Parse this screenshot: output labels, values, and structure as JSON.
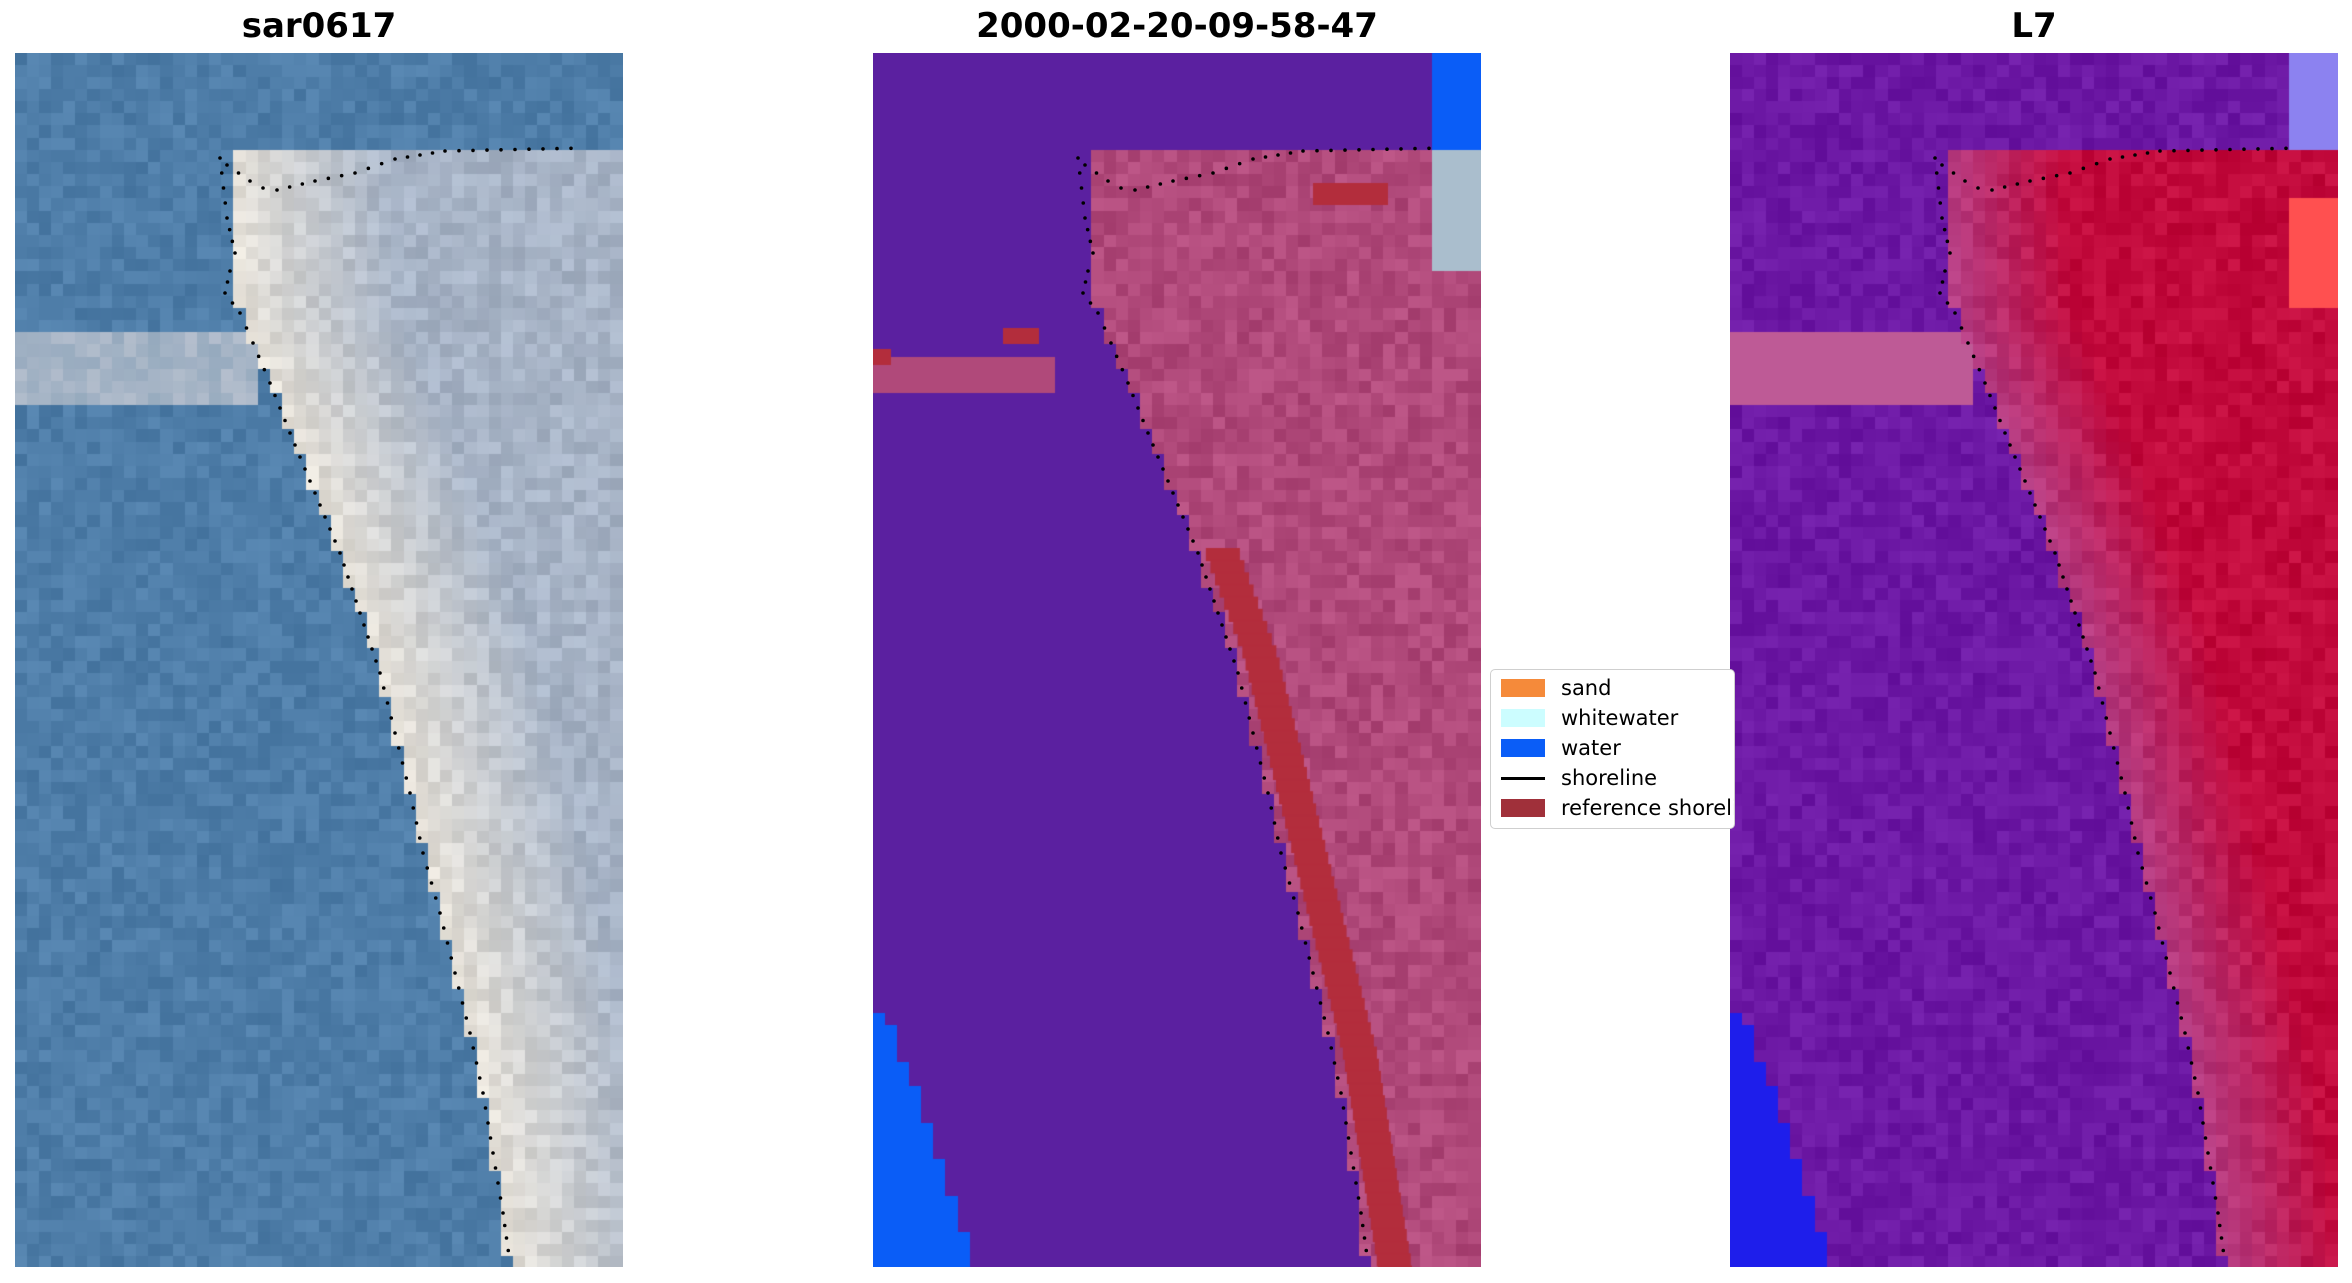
{
  "panels": [
    {
      "title": "sar0617",
      "kind": "rgb"
    },
    {
      "title": "2000-02-20-09-58-47",
      "kind": "classified"
    },
    {
      "title": "L7",
      "kind": "index"
    }
  ],
  "legend": {
    "items": [
      {
        "label": "sand",
        "color": "#f58a3a",
        "type": "patch",
        "icon": "sand-swatch"
      },
      {
        "label": "whitewater",
        "color": "#ccfdff",
        "type": "patch",
        "icon": "whitewater-swatch"
      },
      {
        "label": "water",
        "color": "#0a5df7",
        "type": "patch",
        "icon": "water-swatch"
      },
      {
        "label": "shoreline",
        "color": "#000000",
        "type": "line",
        "icon": "shoreline-line"
      },
      {
        "label": "reference shoreline",
        "color": "#a0303a",
        "type": "patch",
        "icon": "reference-shoreline-swatch"
      }
    ]
  },
  "colors": {
    "water_mask": "#5b20a0",
    "land_overlay": "#b0497a",
    "reference": "#b32d3c",
    "ocean_rgb": "#4e7da8",
    "sand_rgb": "#e6e1d8",
    "index_low": "#6c18a4",
    "index_high": "#c20a3c"
  }
}
